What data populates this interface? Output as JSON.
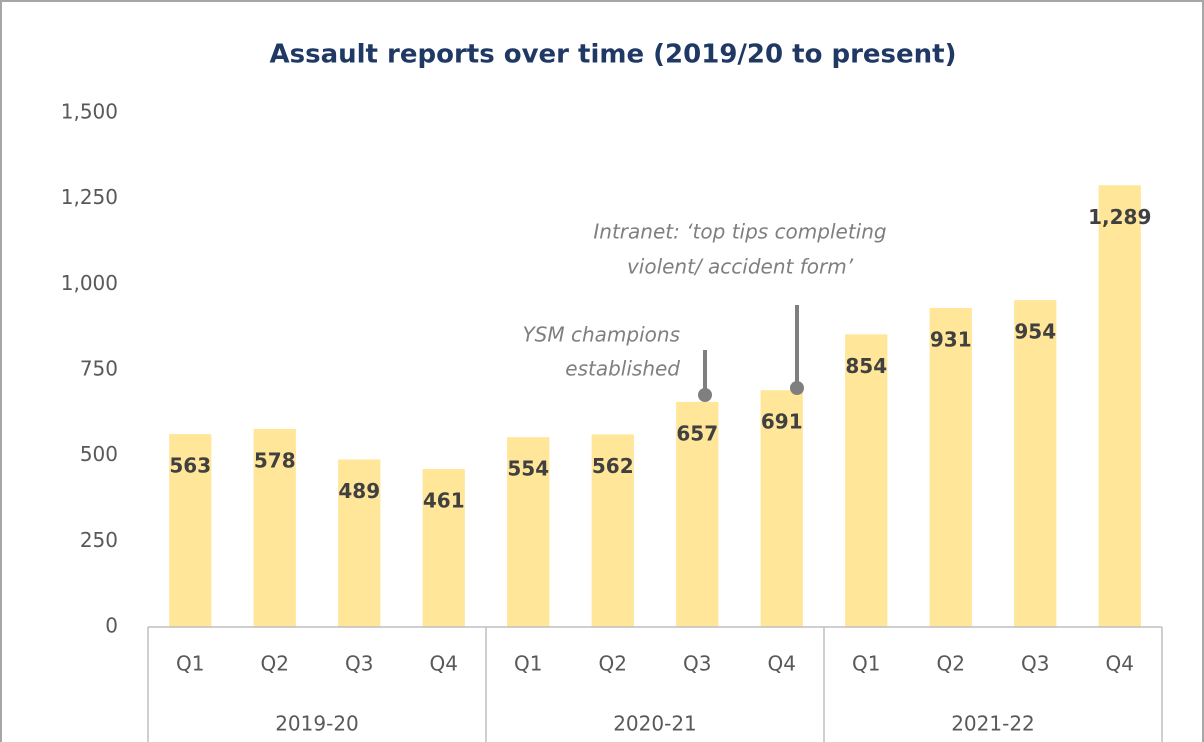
{
  "chart_data": {
    "type": "bar",
    "title": "Assault reports over time (2019/20 to present)",
    "categories": [
      "Q1",
      "Q2",
      "Q3",
      "Q4",
      "Q1",
      "Q2",
      "Q3",
      "Q4",
      "Q1",
      "Q2",
      "Q3",
      "Q4"
    ],
    "groups": [
      "2019-20",
      "2020-21",
      "2021-22"
    ],
    "values": [
      563,
      578,
      489,
      461,
      554,
      562,
      657,
      691,
      854,
      931,
      954,
      1289
    ],
    "value_labels": [
      "563",
      "578",
      "489",
      "461",
      "554",
      "562",
      "657",
      "691",
      "854",
      "931",
      "954",
      "1,289"
    ],
    "color": "#ffe699",
    "ylim": [
      0,
      1500
    ],
    "yticks": [
      0,
      250,
      500,
      750,
      {
        "value": 1000,
        "label": "1,000"
      },
      {
        "value": 1250,
        "label": "1,250"
      },
      {
        "value": 1500,
        "label": "1,500"
      }
    ],
    "grid": false,
    "annotations": [
      {
        "lines": [
          "YSM champions",
          "established"
        ]
      },
      {
        "lines": [
          "Intranet: ‘top tips completing",
          "violent/ accident form’"
        ]
      }
    ]
  }
}
